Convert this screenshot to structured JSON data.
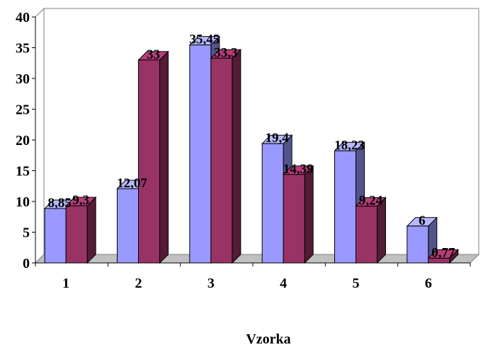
{
  "chart_data": {
    "type": "bar",
    "categories": [
      "1",
      "2",
      "3",
      "4",
      "5",
      "6"
    ],
    "series": [
      {
        "values": [
          8.85,
          12.07,
          35.45,
          19.4,
          18.23,
          6
        ],
        "color": "#9999ff"
      },
      {
        "values": [
          9.3,
          33,
          33.3,
          14.39,
          9.24,
          0.77
        ],
        "color": "#993366"
      }
    ],
    "data_labels": [
      [
        "8,85",
        "12,07",
        "35,45",
        "19,4",
        "18,23",
        "6"
      ],
      [
        "9,3",
        "33",
        "33,3",
        "14,39",
        "9,24",
        "0,77"
      ]
    ],
    "xlabel": "Vzorka",
    "ylabel": "",
    "ylim": [
      0,
      40
    ],
    "yticks": [
      "0",
      "5",
      "10",
      "15",
      "20",
      "25",
      "30",
      "35",
      "40"
    ],
    "style": "3d-clustered",
    "grid": false,
    "legend": "none"
  }
}
